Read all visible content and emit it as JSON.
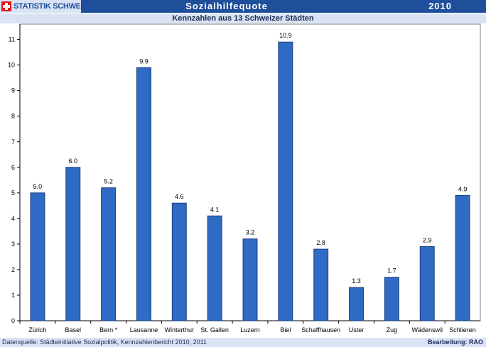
{
  "header": {
    "brand": "STATISTIK SCHWEIZ",
    "title": "Sozialhilfequote",
    "year": "2010"
  },
  "subtitle": "Kennzahlen aus 13 Schweizer Städten",
  "footer": {
    "source": "Datenquelle: Städteinitiative Sozialpolitik, Kennzahlenbericht 2010, 2011",
    "credit": "Bearbeitung: RAO"
  },
  "colors": {
    "bar": "#2f6bc4",
    "bar_edge": "#1b3f7d",
    "header_bg": "#1f4e9b",
    "band_bg": "#d9e3f3"
  },
  "chart_data": {
    "type": "bar",
    "title": "Sozialhilfequote",
    "subtitle": "Kennzahlen aus 13 Schweizer Städten",
    "categories": [
      "Zürich",
      "Basel",
      "Bern *",
      "Lausanne",
      "Winterthur",
      "St. Gallen",
      "Luzern",
      "Biel",
      "Schaffhausen",
      "Uster",
      "Zug",
      "Wädenswil",
      "Schlieren"
    ],
    "values": [
      5.0,
      6.0,
      5.2,
      9.9,
      4.6,
      4.1,
      3.2,
      10.9,
      2.8,
      1.3,
      1.7,
      2.9,
      4.9
    ],
    "value_labels": [
      "5.0",
      "6.0",
      "5.2",
      "9.9",
      "4.6",
      "4.1",
      "3.2",
      "10.9",
      "2.8",
      "1.3",
      "1.7",
      "2.9",
      "4.9"
    ],
    "ylim": [
      0,
      11.6
    ],
    "yticks": [
      0,
      1,
      2,
      3,
      4,
      5,
      6,
      7,
      8,
      9,
      10,
      11
    ],
    "grid": false,
    "legend": "none"
  }
}
